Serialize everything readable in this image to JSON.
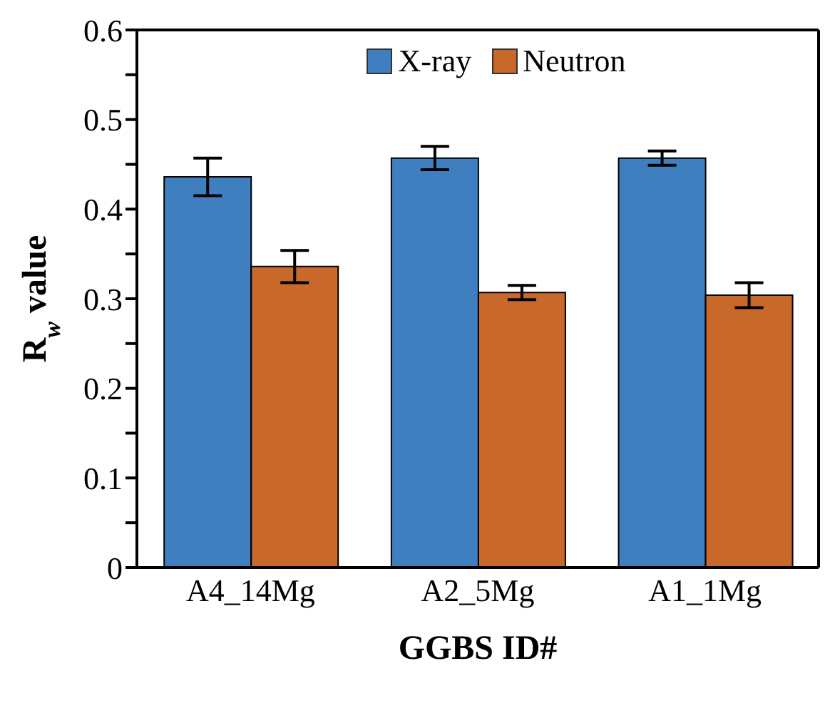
{
  "chart_data": {
    "type": "bar",
    "xlabel": "GGBS ID#",
    "ylabel": "R$_{w}$ value",
    "categories": [
      "A4_14Mg",
      "A2_5Mg",
      "A1_1Mg"
    ],
    "series": [
      {
        "name": "X-ray",
        "color": "#3f7fc0",
        "values": [
          0.436,
          0.457,
          0.457
        ],
        "errors": [
          0.021,
          0.013,
          0.008
        ]
      },
      {
        "name": "Neutron",
        "color": "#c8682a",
        "values": [
          0.336,
          0.307,
          0.304
        ],
        "errors": [
          0.018,
          0.008,
          0.014
        ]
      }
    ],
    "ylim": [
      0,
      0.6
    ],
    "yticks": [
      0,
      {
        "value": 0.05,
        "label": null
      },
      0.1,
      {
        "value": 0.15,
        "label": null
      },
      0.2,
      {
        "value": 0.25,
        "label": null
      },
      0.3,
      {
        "value": 0.35,
        "label": null
      },
      0.4,
      {
        "value": 0.45,
        "label": null
      },
      0.5,
      {
        "value": 0.55,
        "label": null
      },
      0.6
    ],
    "grid": false,
    "legend": "top"
  }
}
